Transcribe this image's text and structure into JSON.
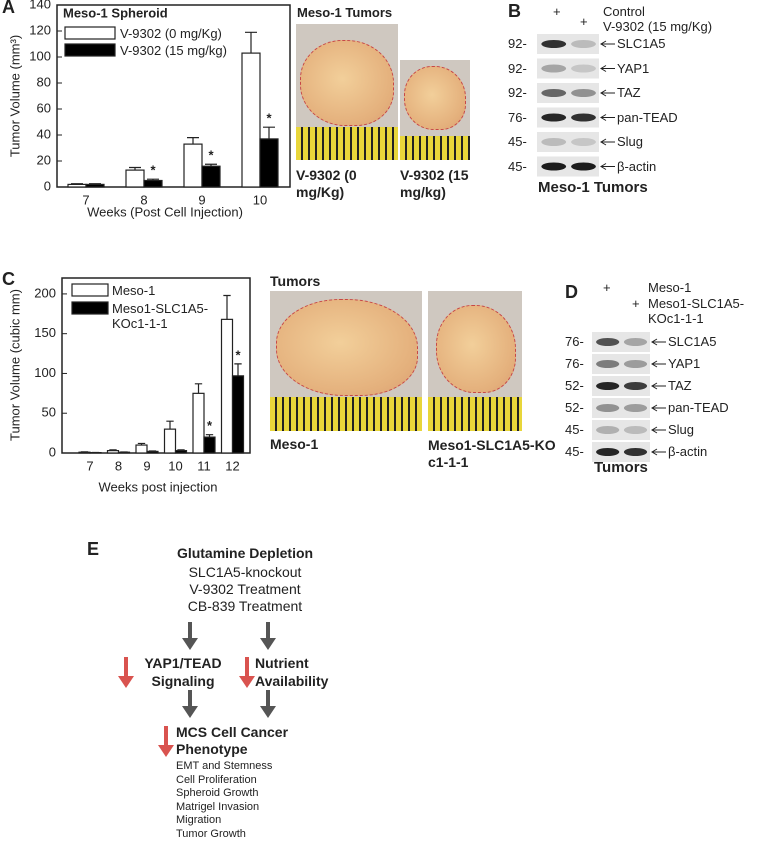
{
  "chart_data": [
    {
      "type": "bar",
      "panel": "A",
      "title": "Meso-1 Spheroid",
      "y_label": "Tumor Volume (mm³)",
      "x_label": "Weeks (Post Cell Injection)",
      "categories": [
        "7",
        "8",
        "9",
        "10"
      ],
      "series": [
        {
          "name": "V-9302 (0 mg/Kg)",
          "color": "#ffffff",
          "values": [
            2,
            13,
            33,
            103
          ],
          "errors": [
            0.5,
            2,
            5,
            16
          ],
          "significance": [
            null,
            null,
            null,
            null
          ]
        },
        {
          "name": "V-9302 (15 mg/kg)",
          "color": "#000000",
          "values": [
            2,
            5,
            16,
            37
          ],
          "errors": [
            0.5,
            1,
            1.5,
            9
          ],
          "significance": [
            null,
            "*",
            "*",
            "*"
          ]
        }
      ],
      "ylim": [
        0,
        140
      ],
      "yticks": [
        0,
        20,
        40,
        60,
        80,
        100,
        120,
        140
      ]
    },
    {
      "type": "bar",
      "panel": "C",
      "y_label": "Tumor Volume (cubic mm)",
      "x_label": "Weeks post injection",
      "categories": [
        "7",
        "8",
        "9",
        "10",
        "11",
        "12"
      ],
      "series": [
        {
          "name": "Meso-1",
          "color": "#ffffff",
          "values": [
            1,
            3,
            10,
            30,
            75,
            168
          ],
          "errors": [
            0.5,
            1,
            2,
            10,
            12,
            30
          ],
          "significance": [
            null,
            null,
            null,
            null,
            null,
            null
          ]
        },
        {
          "name": "Meso1-SLC1A5-KOc1-1-1",
          "color": "#000000",
          "values": [
            0.5,
            1,
            2,
            3,
            20,
            97
          ],
          "errors": [
            0.2,
            0.3,
            0.5,
            1,
            3,
            15
          ],
          "significance": [
            null,
            null,
            null,
            null,
            "*",
            "*"
          ]
        }
      ],
      "ylim": [
        0,
        220
      ],
      "yticks": [
        0,
        50,
        100,
        150,
        200
      ]
    }
  ],
  "photos_A": {
    "title": "Meso-1 Tumors",
    "captions": [
      "V-9302 (0 mg/Kg)",
      "V-9302 (15 mg/kg)"
    ]
  },
  "photos_C": {
    "title": "Tumors",
    "captions": [
      "Meso-1",
      "Meso1-SLC1A5-KOc1-1-1"
    ]
  },
  "blot_B": {
    "panel": "B",
    "conditions": [
      {
        "lane": "+",
        "label": "Control"
      },
      {
        "lane": "+",
        "label": "V-9302 (15 mg/Kg)"
      }
    ],
    "rows": [
      {
        "marker": "92-",
        "protein": "SLC1A5"
      },
      {
        "marker": "92-",
        "protein": "YAP1"
      },
      {
        "marker": "92-",
        "protein": "TAZ"
      },
      {
        "marker": "76-",
        "protein": "pan-TEAD"
      },
      {
        "marker": "45-",
        "protein": "Slug"
      },
      {
        "marker": "45-",
        "protein": "β-actin"
      }
    ],
    "footer": "Meso-1 Tumors"
  },
  "blot_D": {
    "panel": "D",
    "conditions": [
      {
        "lane": "+",
        "label": "Meso-1"
      },
      {
        "lane": "+",
        "label": "Meso1-SLC1A5-KOc1-1-1"
      }
    ],
    "rows": [
      {
        "marker": "76-",
        "protein": "SLC1A5"
      },
      {
        "marker": "76-",
        "protein": "YAP1"
      },
      {
        "marker": "52-",
        "protein": "TAZ"
      },
      {
        "marker": "52-",
        "protein": "pan-TEAD"
      },
      {
        "marker": "45-",
        "protein": "Slug"
      },
      {
        "marker": "45-",
        "protein": "β-actin"
      }
    ],
    "footer": "Tumors"
  },
  "diagram_E": {
    "panel": "E",
    "top": {
      "title": "Glutamine Depletion",
      "items": [
        "SLC1A5-knockout",
        "V-9302 Treatment",
        "CB-839 Treatment"
      ]
    },
    "left": "YAP1/TEAD Signaling",
    "right": "Nutrient Availability",
    "bottom": {
      "title": "MCS Cell Cancer Phenotype",
      "items": [
        "EMT and Stemness",
        "Cell Proliferation",
        "Spheroid Growth",
        "Matrigel Invasion",
        "Migration",
        "Tumor Growth"
      ]
    }
  }
}
